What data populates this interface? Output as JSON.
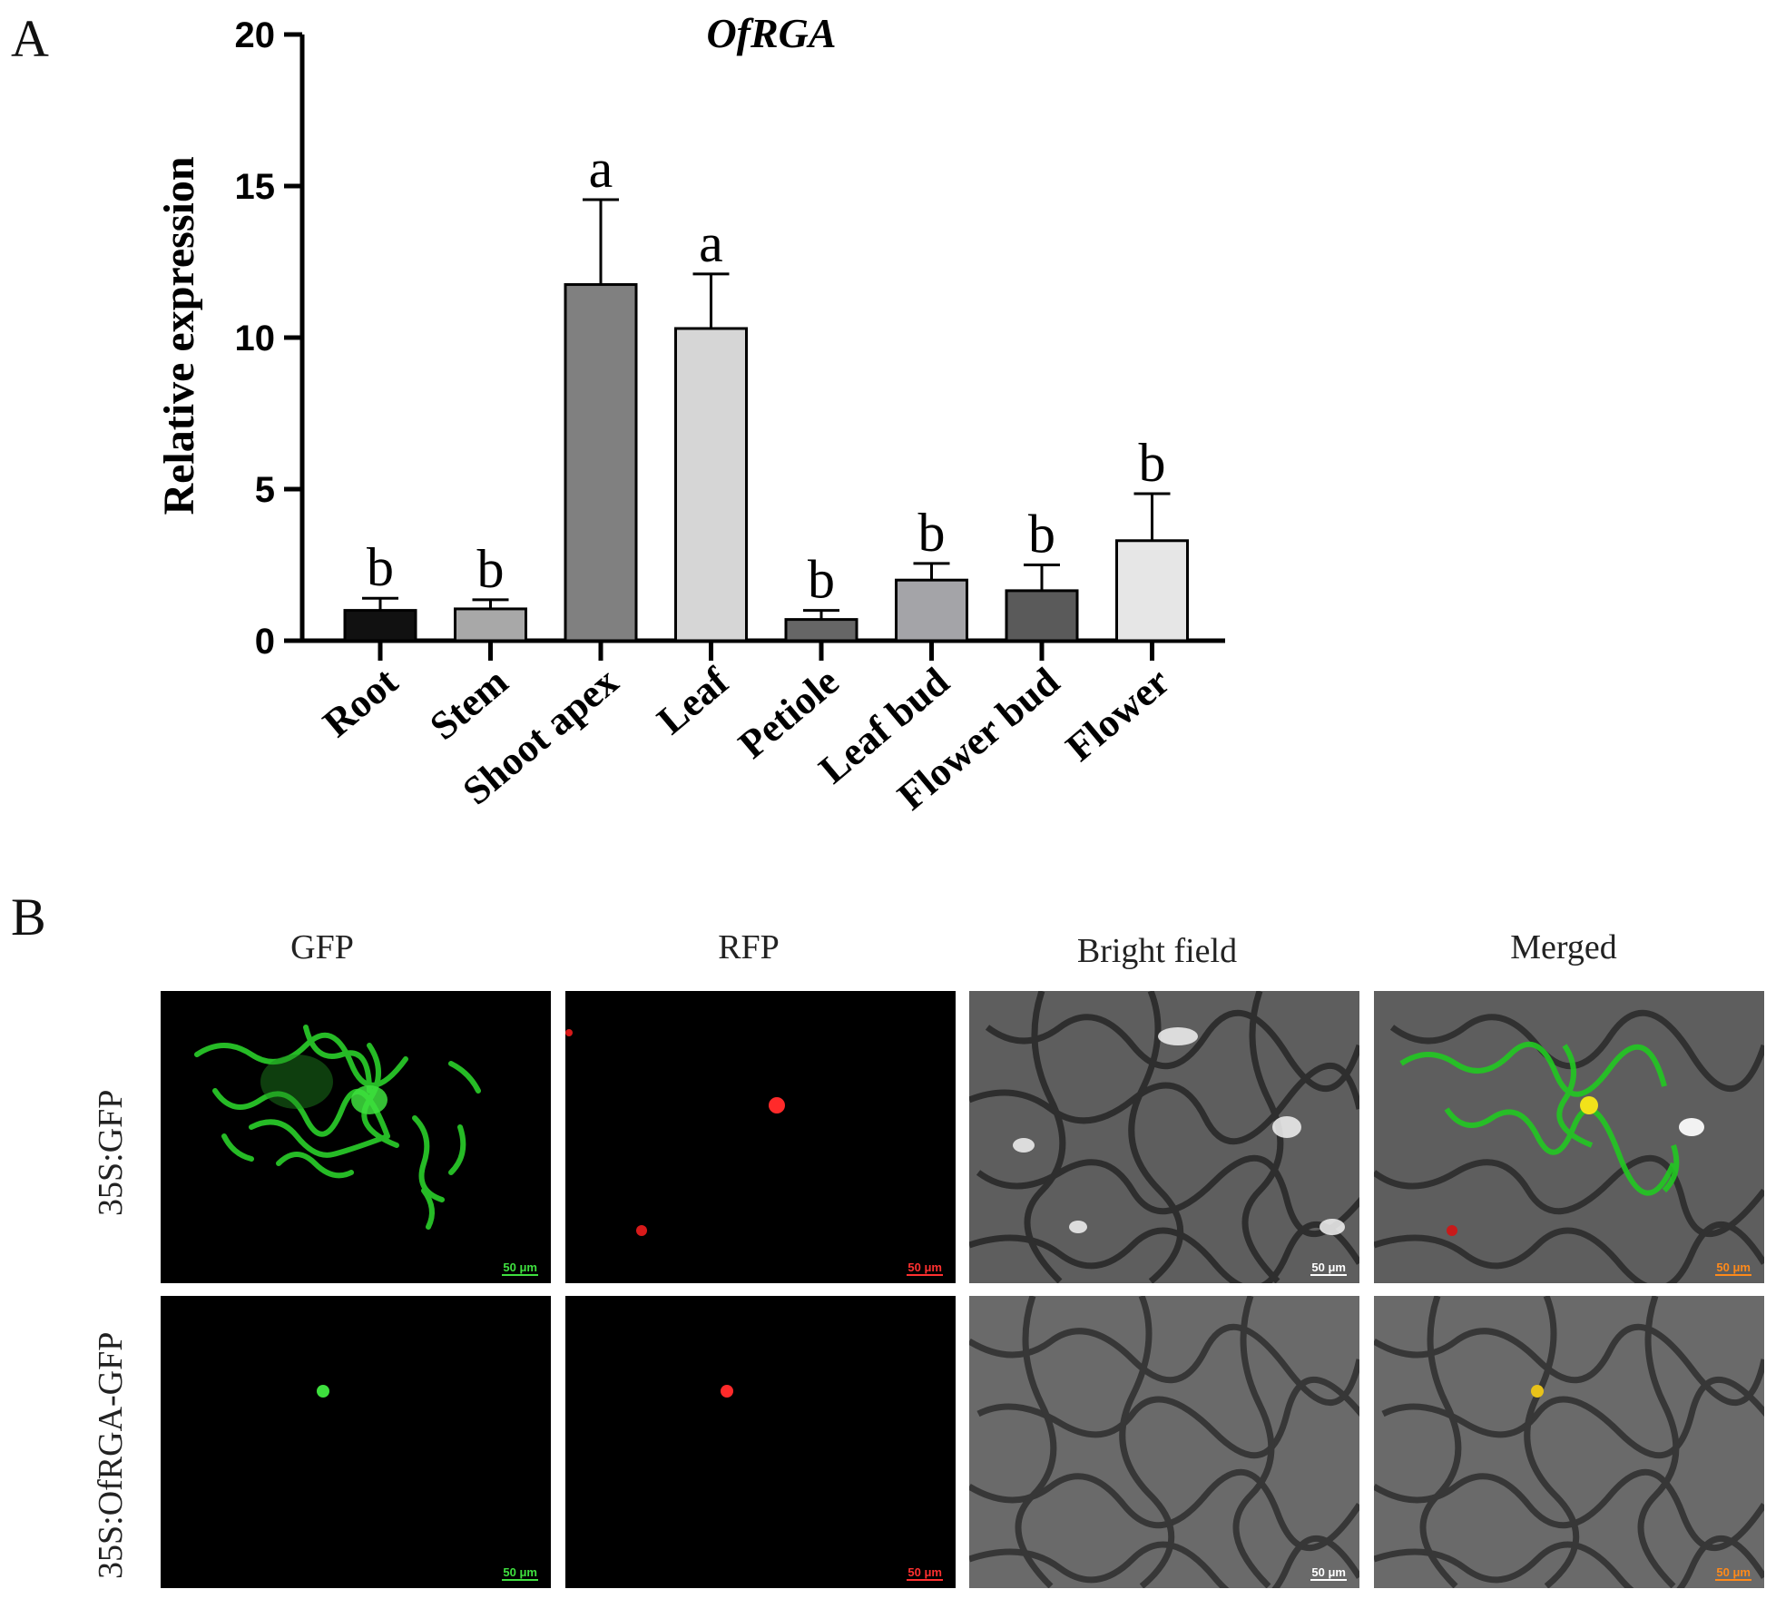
{
  "panels": {
    "a": "A",
    "b": "B"
  },
  "chart_data": {
    "type": "bar",
    "title": "OfRGA",
    "ylabel": "Relative expression",
    "xlabel": "",
    "ylim": [
      0,
      20
    ],
    "yticks": [
      0,
      5,
      10,
      15,
      20
    ],
    "categories": [
      "Root",
      "Stem",
      "Shoot apex",
      "Leaf",
      "Petiole",
      "Leaf bud",
      "Flower bud",
      "Flower"
    ],
    "values": [
      1.0,
      1.05,
      11.75,
      10.3,
      0.7,
      2.0,
      1.65,
      3.3
    ],
    "errors": [
      0.4,
      0.3,
      2.8,
      1.8,
      0.3,
      0.55,
      0.85,
      1.55
    ],
    "significance": [
      "b",
      "b",
      "a",
      "a",
      "b",
      "b",
      "b",
      "b"
    ],
    "colors": [
      "#111111",
      "#a8a8a8",
      "#808080",
      "#d6d6d6",
      "#666666",
      "#a4a4a8",
      "#5a5a5a",
      "#e6e6e6"
    ]
  },
  "micrographs": {
    "columns": [
      "GFP",
      "RFP",
      "Bright field",
      "Merged"
    ],
    "rows": [
      "35S:GFP",
      "35S:OfRGA-GFP"
    ],
    "scale_bar": "50 μm"
  }
}
